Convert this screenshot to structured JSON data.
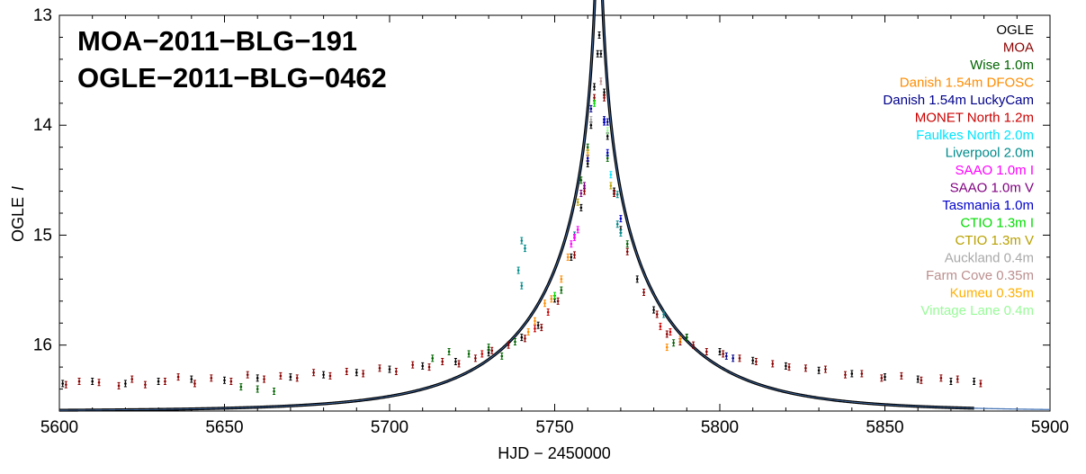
{
  "chart_data": {
    "type": "scatter",
    "title_lines": [
      "MOA−2011−BLG−191",
      "OGLE−2011−BLG−0462"
    ],
    "xlabel": "HJD − 2450000",
    "ylabel": "OGLE",
    "ylabel_italic": "I",
    "xlim": [
      5600,
      5900
    ],
    "ylim": [
      13,
      16.6
    ],
    "y_inverted": true,
    "xticks": [
      5600,
      5650,
      5700,
      5750,
      5800,
      5850,
      5900
    ],
    "yticks": [
      13,
      14,
      15,
      16
    ],
    "legend_position": "top-right",
    "model": {
      "name": "best-fit model",
      "t0": 5763.3,
      "base_mag": 16.6,
      "tE": 42,
      "u0": 0.0158,
      "x_range": [
        5600,
        5900
      ],
      "color": "#000000",
      "highlight_color": "#4a78b8"
    },
    "series": [
      {
        "name": "OGLE",
        "color": "#000000",
        "points": [
          [
            5601,
            16.35
          ],
          [
            5610,
            16.33
          ],
          [
            5620,
            16.35
          ],
          [
            5630,
            16.33
          ],
          [
            5640,
            16.31
          ],
          [
            5650,
            16.32
          ],
          [
            5660,
            16.3
          ],
          [
            5670,
            16.29
          ],
          [
            5680,
            16.27
          ],
          [
            5690,
            16.25
          ],
          [
            5700,
            16.22
          ],
          [
            5710,
            16.19
          ],
          [
            5720,
            16.15
          ],
          [
            5730,
            16.07
          ],
          [
            5740,
            15.93
          ],
          [
            5745,
            15.82
          ],
          [
            5750,
            15.58
          ],
          [
            5755,
            15.2
          ],
          [
            5758,
            14.75
          ],
          [
            5760,
            14.35
          ],
          [
            5761,
            14.0
          ],
          [
            5762,
            13.65
          ],
          [
            5763,
            13.35
          ],
          [
            5763.5,
            13.18
          ],
          [
            5764,
            13.35
          ],
          [
            5765,
            13.7
          ],
          [
            5766,
            14.1
          ],
          [
            5768,
            14.6
          ],
          [
            5770,
            14.95
          ],
          [
            5775,
            15.4
          ],
          [
            5780,
            15.68
          ],
          [
            5790,
            15.93
          ],
          [
            5800,
            16.06
          ],
          [
            5810,
            16.14
          ],
          [
            5820,
            16.19
          ],
          [
            5830,
            16.23
          ],
          [
            5840,
            16.26
          ],
          [
            5850,
            16.29
          ],
          [
            5860,
            16.31
          ],
          [
            5870,
            16.33
          ],
          [
            5877,
            16.33
          ]
        ]
      },
      {
        "name": "MOA",
        "color": "#8b0000",
        "points": [
          [
            5602,
            16.36
          ],
          [
            5606,
            16.33
          ],
          [
            5612,
            16.34
          ],
          [
            5618,
            16.37
          ],
          [
            5622,
            16.31
          ],
          [
            5626,
            16.36
          ],
          [
            5632,
            16.33
          ],
          [
            5636,
            16.29
          ],
          [
            5641,
            16.35
          ],
          [
            5646,
            16.3
          ],
          [
            5652,
            16.33
          ],
          [
            5657,
            16.27
          ],
          [
            5662,
            16.31
          ],
          [
            5667,
            16.28
          ],
          [
            5672,
            16.3
          ],
          [
            5677,
            16.25
          ],
          [
            5682,
            16.28
          ],
          [
            5687,
            16.24
          ],
          [
            5692,
            16.26
          ],
          [
            5697,
            16.21
          ],
          [
            5702,
            16.24
          ],
          [
            5707,
            16.18
          ],
          [
            5712,
            16.2
          ],
          [
            5716,
            16.15
          ],
          [
            5721,
            16.17
          ],
          [
            5726,
            16.12
          ],
          [
            5731,
            16.05
          ],
          [
            5736,
            16.0
          ],
          [
            5741,
            15.94
          ],
          [
            5746,
            15.84
          ],
          [
            5751,
            15.6
          ],
          [
            5756,
            15.18
          ],
          [
            5759,
            14.6
          ],
          [
            5762,
            13.75
          ],
          [
            5765,
            13.75
          ],
          [
            5768,
            14.62
          ],
          [
            5772,
            15.15
          ],
          [
            5777,
            15.52
          ],
          [
            5781,
            15.72
          ],
          [
            5784,
            15.9
          ],
          [
            5788,
            15.97
          ],
          [
            5792,
            16.0
          ],
          [
            5796,
            16.06
          ],
          [
            5801,
            16.08
          ],
          [
            5806,
            16.12
          ],
          [
            5811,
            16.15
          ],
          [
            5816,
            16.17
          ],
          [
            5821,
            16.2
          ],
          [
            5826,
            16.21
          ],
          [
            5832,
            16.22
          ],
          [
            5838,
            16.27
          ],
          [
            5843,
            16.26
          ],
          [
            5849,
            16.3
          ],
          [
            5855,
            16.28
          ],
          [
            5861,
            16.32
          ],
          [
            5867,
            16.3
          ],
          [
            5872,
            16.31
          ],
          [
            5879,
            16.35
          ]
        ]
      },
      {
        "name": "Wise 1.0m",
        "color": "#006400",
        "points": [
          [
            5655,
            16.38
          ],
          [
            5660,
            16.4
          ],
          [
            5665,
            16.42
          ],
          [
            5713,
            16.12
          ],
          [
            5718,
            16.06
          ],
          [
            5724,
            16.08
          ],
          [
            5730,
            16.02
          ],
          [
            5734,
            16.1
          ],
          [
            5738,
            15.97
          ],
          [
            5752,
            15.5
          ],
          [
            5758,
            14.5
          ],
          [
            5760,
            14.2
          ],
          [
            5766,
            14.3
          ],
          [
            5772,
            15.08
          ],
          [
            5786,
            15.98
          ],
          [
            5790,
            15.93
          ]
        ]
      },
      {
        "name": "Danish 1.54m DFOSC",
        "color": "#ff8c00",
        "points": [
          [
            5742,
            15.88
          ],
          [
            5744,
            15.78
          ],
          [
            5747,
            15.62
          ],
          [
            5749,
            15.58
          ],
          [
            5752,
            15.4
          ],
          [
            5754,
            15.2
          ],
          [
            5760,
            14.3
          ],
          [
            5784,
            16.02
          ],
          [
            5788,
            15.95
          ]
        ]
      },
      {
        "name": "Danish 1.54m LuckyCam",
        "color": "#00008b",
        "points": [
          [
            5761,
            13.85
          ],
          [
            5765,
            13.95
          ],
          [
            5766,
            13.97
          ],
          [
            5802,
            16.1
          ],
          [
            5804,
            16.12
          ]
        ]
      },
      {
        "name": "MONET North 1.2m",
        "color": "#cc0000",
        "points": [
          [
            5728,
            16.08
          ],
          [
            5744,
            15.85
          ],
          [
            5748,
            15.7
          ],
          [
            5782,
            15.83
          ],
          [
            5785,
            15.88
          ]
        ]
      },
      {
        "name": "Faulkes North 2.0m",
        "color": "#00e5ff",
        "points": [
          [
            5759,
            14.55
          ],
          [
            5767,
            14.45
          ]
        ]
      },
      {
        "name": "Liverpool 2.0m",
        "color": "#008b8b",
        "points": [
          [
            5740,
            15.05
          ],
          [
            5741,
            15.12
          ],
          [
            5739,
            15.32
          ],
          [
            5740,
            15.46
          ],
          [
            5756,
            15.0
          ],
          [
            5769,
            14.63
          ],
          [
            5769,
            14.9
          ],
          [
            5770,
            14.98
          ],
          [
            5783,
            15.72
          ]
        ]
      },
      {
        "name": "SAAO 1.0m I",
        "color": "#ff00ff",
        "points": [
          [
            5755,
            15.08
          ],
          [
            5756,
            15.02
          ],
          [
            5757,
            14.95
          ]
        ]
      },
      {
        "name": "SAAO 1.0m V",
        "color": "#800080",
        "points": [
          [
            5758,
            14.62
          ],
          [
            5759,
            14.55
          ]
        ]
      },
      {
        "name": "Tasmania 1.0m",
        "color": "#0000cd",
        "points": [
          [
            5765,
            13.97
          ],
          [
            5766,
            14.25
          ],
          [
            5770,
            14.85
          ],
          [
            5760,
            14.3
          ]
        ]
      },
      {
        "name": "CTIO 1.3m I",
        "color": "#00dd00",
        "points": [
          [
            5750,
            15.55
          ],
          [
            5762,
            13.8
          ]
        ]
      },
      {
        "name": "CTIO 1.3m V",
        "color": "#b8a000",
        "points": [
          [
            5757,
            14.7
          ],
          [
            5767,
            14.55
          ]
        ]
      },
      {
        "name": "Auckland 0.4m",
        "color": "#a9a9a9",
        "points": [
          [
            5761,
            13.95
          ]
        ]
      },
      {
        "name": "Farm Cove 0.35m",
        "color": "#bc8f8f",
        "points": [
          [
            5764,
            13.6
          ]
        ]
      },
      {
        "name": "Kumeu 0.35m",
        "color": "#ffb000",
        "points": [
          [
            5760,
            14.25
          ]
        ]
      },
      {
        "name": "Vintage Lane 0.4m",
        "color": "#98fb98",
        "points": [
          [
            5766,
            14.05
          ]
        ]
      }
    ]
  }
}
